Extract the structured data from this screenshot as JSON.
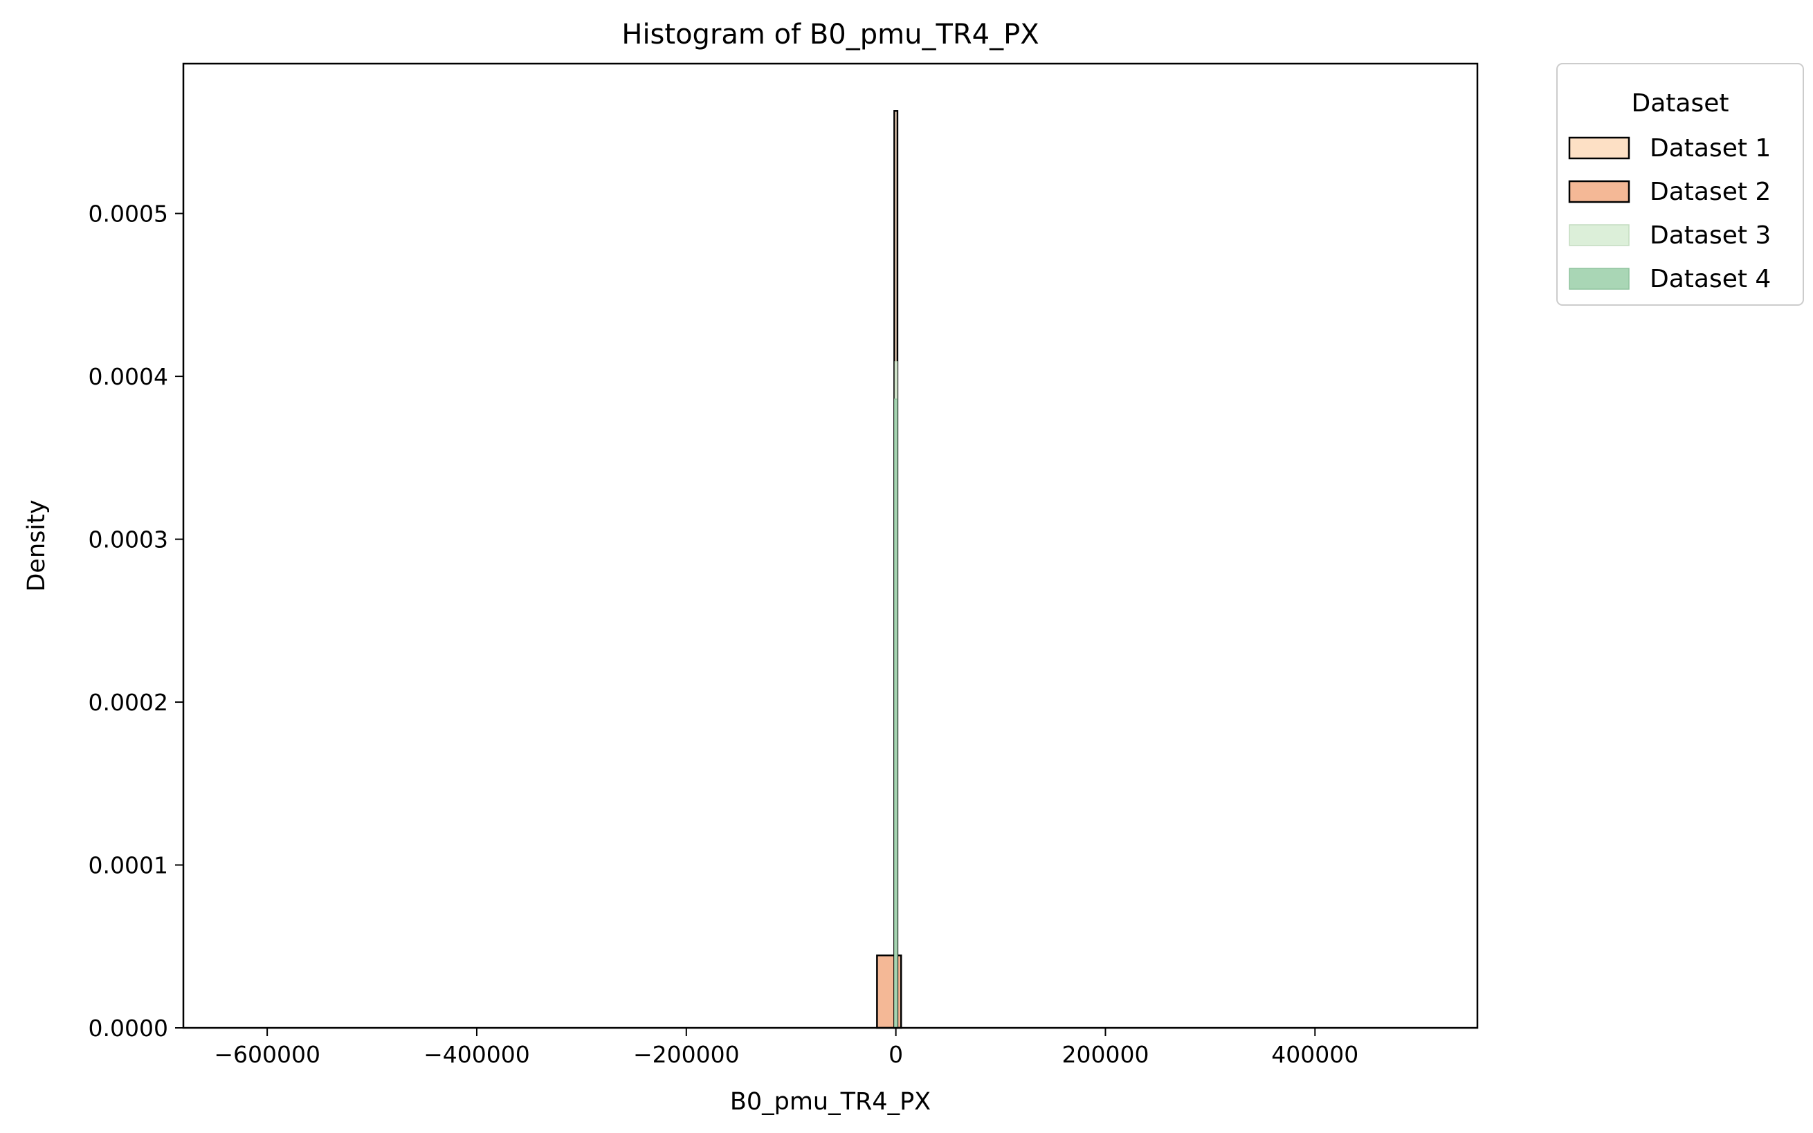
{
  "chart_data": {
    "type": "bar",
    "title": "Histogram of B0_pmu_TR4_PX",
    "xlabel": "B0_pmu_TR4_PX",
    "ylabel": "Density",
    "xlim": [
      -680000,
      555000
    ],
    "ylim": [
      0,
      0.000592
    ],
    "xticks": [
      -600000,
      -400000,
      -200000,
      0,
      200000,
      400000
    ],
    "xtick_labels": [
      "−600000",
      "−400000",
      "−200000",
      "0",
      "200000",
      "400000"
    ],
    "yticks": [
      0,
      0.0001,
      0.0002,
      0.0003,
      0.0004,
      0.0005
    ],
    "ytick_labels": [
      "0.0000",
      "0.0001",
      "0.0002",
      "0.0003",
      "0.0004",
      "0.0005"
    ],
    "grid": false,
    "legend": {
      "title": "Dataset",
      "placement": "outside-top-right",
      "entries": [
        "Dataset 1",
        "Dataset 2",
        "Dataset 3",
        "Dataset 4"
      ]
    },
    "series": [
      {
        "name": "Dataset 1",
        "color": "#fde0c5",
        "edge": "#000000",
        "bins": [
          {
            "x0": -1500,
            "x1": 1500,
            "density": 0.000563
          }
        ]
      },
      {
        "name": "Dataset 2",
        "color": "#f4b896",
        "edge": "#000000",
        "bins": [
          {
            "x0": -18000,
            "x1": 5000,
            "density": 4.45e-05
          }
        ]
      },
      {
        "name": "Dataset 3",
        "color": "#dcefd9",
        "edge": "#c4dcc0",
        "bins": [
          {
            "x0": -800,
            "x1": 800,
            "density": 0.000409
          }
        ]
      },
      {
        "name": "Dataset 4",
        "color": "#a9d6b5",
        "edge": "#8fc49e",
        "bins": [
          {
            "x0": -1200,
            "x1": 1200,
            "density": 0.000386
          }
        ]
      }
    ]
  }
}
